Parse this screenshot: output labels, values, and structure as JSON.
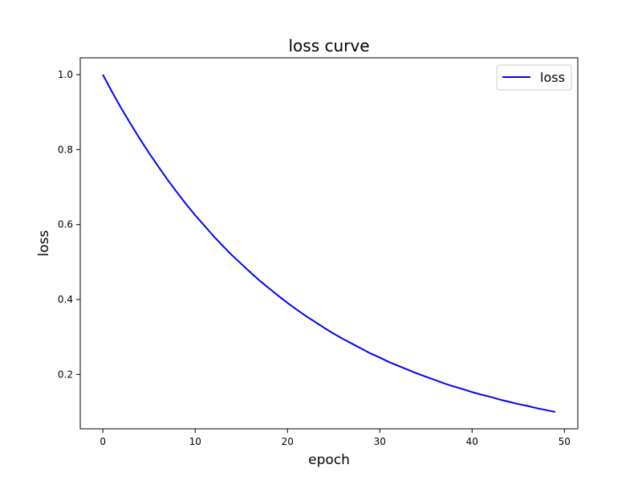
{
  "chart_data": {
    "type": "line",
    "title": "loss curve",
    "xlabel": "epoch",
    "ylabel": "loss",
    "xlim": [
      -2.45,
      51.45
    ],
    "ylim": [
      0.055,
      1.045
    ],
    "xticks": [
      0,
      10,
      20,
      30,
      40,
      50
    ],
    "yticks": [
      0.2,
      0.4,
      0.6,
      0.8,
      1.0
    ],
    "xtick_labels": [
      "0",
      "10",
      "20",
      "30",
      "40",
      "50"
    ],
    "ytick_labels": [
      "0.2",
      "0.4",
      "0.6",
      "0.8",
      "1.0"
    ],
    "grid": false,
    "legend_position": "top-right",
    "series": [
      {
        "name": "loss",
        "color": "#0000ff",
        "x": [
          0,
          1,
          2,
          3,
          4,
          5,
          6,
          7,
          8,
          9,
          10,
          11,
          12,
          13,
          14,
          15,
          16,
          17,
          18,
          19,
          20,
          21,
          22,
          23,
          24,
          25,
          26,
          27,
          28,
          29,
          30,
          31,
          32,
          33,
          34,
          35,
          36,
          37,
          38,
          39,
          40,
          41,
          42,
          43,
          44,
          45,
          46,
          47,
          48,
          49
        ],
        "y": [
          1.0,
          0.954,
          0.91,
          0.869,
          0.829,
          0.791,
          0.755,
          0.72,
          0.687,
          0.655,
          0.625,
          0.597,
          0.569,
          0.543,
          0.518,
          0.495,
          0.472,
          0.45,
          0.43,
          0.41,
          0.391,
          0.373,
          0.356,
          0.34,
          0.324,
          0.309,
          0.295,
          0.282,
          0.269,
          0.256,
          0.245,
          0.233,
          0.223,
          0.213,
          0.203,
          0.194,
          0.185,
          0.176,
          0.168,
          0.161,
          0.153,
          0.146,
          0.14,
          0.133,
          0.127,
          0.121,
          0.116,
          0.11,
          0.105,
          0.1
        ]
      }
    ]
  }
}
